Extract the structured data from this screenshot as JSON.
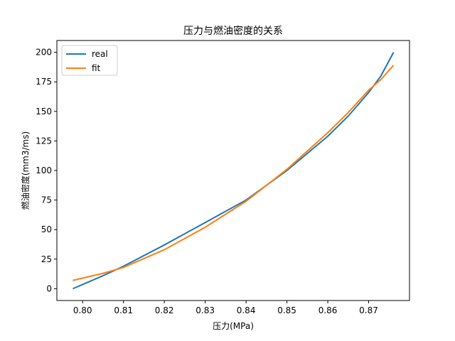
{
  "chart_data": {
    "type": "line",
    "title": "压力与燃油密度的关系",
    "x_label": "压力(MPa)",
    "y_label": "燃油密度(mm3/ms)",
    "x": [
      0.7976,
      0.805,
      0.81,
      0.82,
      0.83,
      0.84,
      0.85,
      0.86,
      0.865,
      0.87,
      0.873,
      0.8761
    ],
    "series": [
      {
        "name": "real",
        "color": "#1f77b4",
        "values": [
          0,
          11,
          19,
          37,
          56,
          75,
          100,
          129,
          146,
          166,
          180,
          200
        ]
      },
      {
        "name": "fit",
        "color": "#ff7f0e",
        "values": [
          7,
          13,
          18,
          33,
          52,
          74,
          101,
          132,
          149,
          168,
          177,
          189
        ]
      }
    ],
    "xlim": [
      0.7937,
      0.88
    ],
    "ylim": [
      -10,
      210
    ],
    "xticks": [
      {
        "value": 0.8,
        "label": "0.80"
      },
      0.81,
      0.82,
      0.83,
      0.84,
      0.85,
      0.86,
      0.87
    ],
    "yticks": [
      0,
      25,
      50,
      75,
      100,
      125,
      150,
      175,
      200
    ],
    "grid": false,
    "legend": "upper left"
  }
}
